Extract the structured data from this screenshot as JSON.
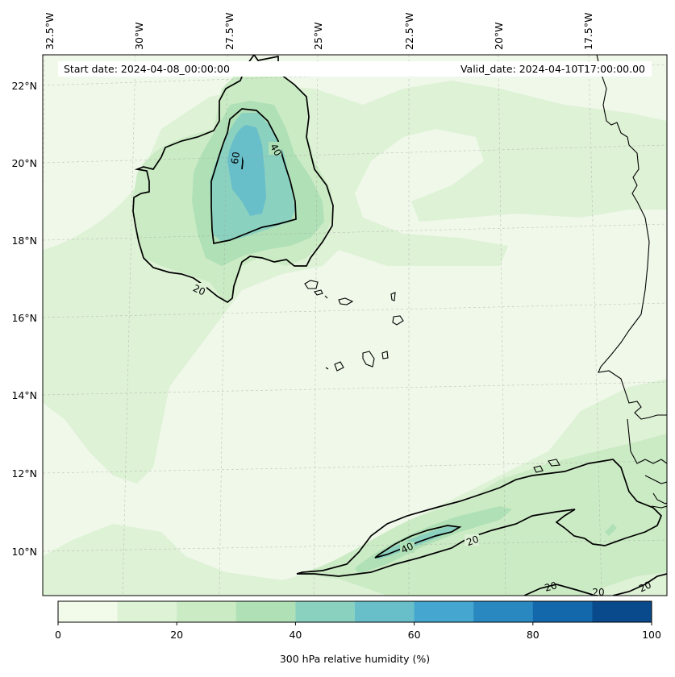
{
  "header": {
    "start_date": "Start date: 2024-04-08_00:00:00",
    "valid_date": "Valid_date: 2024-04-10T17:00:00.00"
  },
  "lon_labels": [
    "32.5°W",
    "30°W",
    "27.5°W",
    "25°W",
    "22.5°W",
    "20°W",
    "17.5°W"
  ],
  "lat_labels": [
    "22°N",
    "20°N",
    "18°N",
    "16°N",
    "14°N",
    "12°N",
    "10°N"
  ],
  "contour_labels": [
    "60",
    "40",
    "20",
    "40",
    "20",
    "20",
    "20",
    "20"
  ],
  "colorbar": {
    "label": "300 hPa relative humidity (%)",
    "ticks": [
      "0",
      "20",
      "40",
      "60",
      "80",
      "100"
    ],
    "colors": [
      "#f2faea",
      "#def2d6",
      "#cbebc4",
      "#b0e0b6",
      "#8bd1bf",
      "#69bfc9",
      "#45a6cf",
      "#2a88c0",
      "#1268ab",
      "#084a8c"
    ]
  },
  "colors": {
    "ocean_fill": "#eff8e9",
    "level10": "#def2d6",
    "level20": "#cbebc4",
    "level30": "#b0e0b6",
    "level40": "#8bd1bf",
    "level50": "#69bfc9"
  }
}
